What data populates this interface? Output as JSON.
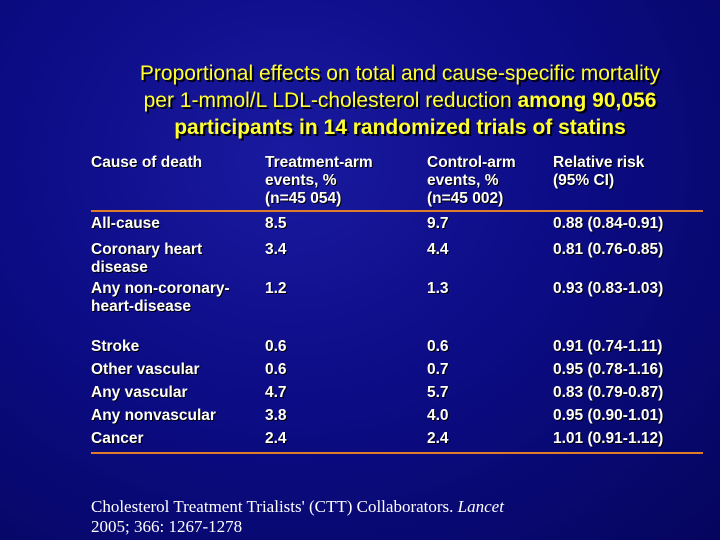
{
  "title": {
    "line1": "Proportional effects on total and cause-specific mortality",
    "line2_normal": "per 1-mmol/L LDL-cholesterol reduction",
    "line2_bold": "among 90,056",
    "line3": "participants in 14 randomized trials of statins"
  },
  "table": {
    "headers": {
      "cause": "Cause of death",
      "treatment": [
        "Treatment-arm",
        "events, %",
        "(n=45 054)"
      ],
      "control": [
        "Control-arm",
        "events, %",
        "(n=45 002)"
      ],
      "rr": [
        "Relative risk",
        "(95% CI)"
      ]
    },
    "rows": [
      {
        "cause": [
          "All-cause"
        ],
        "treatment": "8.5",
        "control": "9.7",
        "rr": "0.88 (0.84-0.91)"
      },
      {
        "cause": [
          "Coronary heart",
          "disease"
        ],
        "treatment": "3.4",
        "control": "4.4",
        "rr": "0.81 (0.76-0.85)"
      },
      {
        "cause": [
          "Any non-coronary-",
          "heart-disease"
        ],
        "treatment": "1.2",
        "control": "1.3",
        "rr": "0.93 (0.83-1.03)"
      },
      {
        "cause": [
          "Stroke"
        ],
        "treatment": "0.6",
        "control": "0.6",
        "rr": "0.91 (0.74-1.11)"
      },
      {
        "cause": [
          "Other vascular"
        ],
        "treatment": "0.6",
        "control": "0.7",
        "rr": "0.95 (0.78-1.16)"
      },
      {
        "cause": [
          "Any vascular"
        ],
        "treatment": "4.7",
        "control": "5.7",
        "rr": "0.83 (0.79-0.87)"
      },
      {
        "cause": [
          "Any nonvascular"
        ],
        "treatment": "3.8",
        "control": "4.0",
        "rr": "0.95 (0.90-1.01)"
      },
      {
        "cause": [
          "Cancer"
        ],
        "treatment": "2.4",
        "control": "2.4",
        "rr": "1.01 (0.91-1.12)"
      }
    ]
  },
  "footer": {
    "text": "Cholesterol Treatment Trialists' (CTT) Collaborators.",
    "journal": "Lancet",
    "citation": "2005; 366: 1267-1278"
  },
  "colors": {
    "background": "#0c0c86",
    "title": "#ffff33",
    "rule": "#e07b2a",
    "text": "#ffffff"
  }
}
